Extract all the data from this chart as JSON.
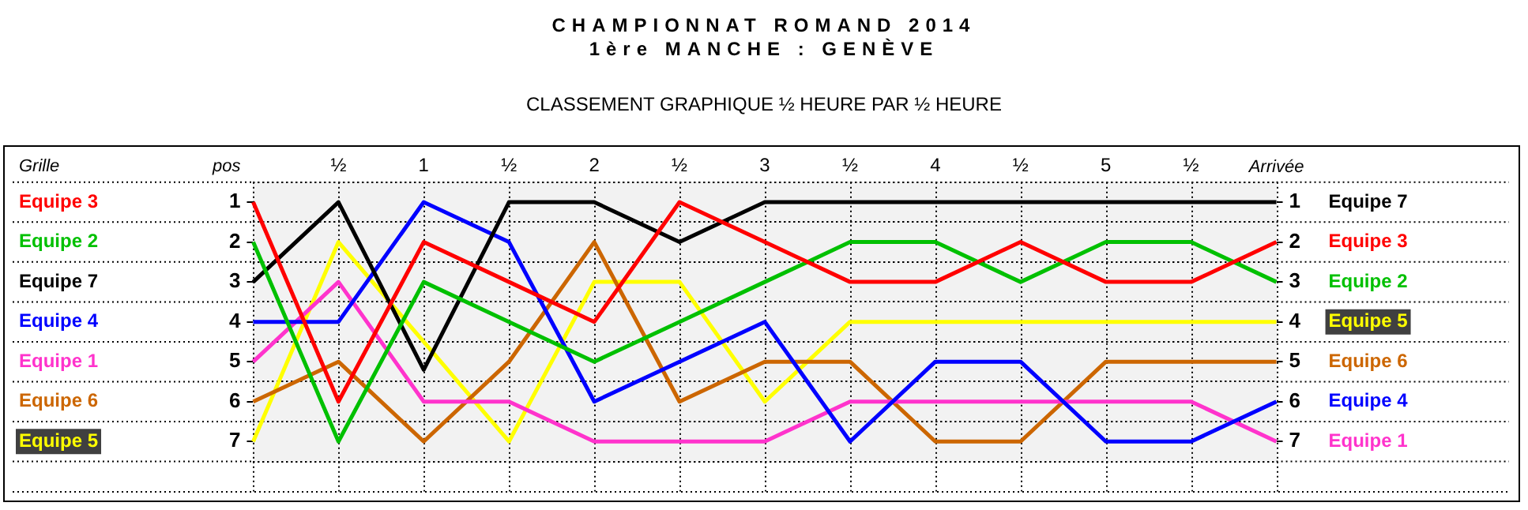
{
  "chart_data": {
    "type": "line",
    "title": "CHAMPIONNAT ROMAND 2014",
    "subtitle": "1ère MANCHE : GENÈVE",
    "annotations": [
      "CLASSEMENT GRAPHIQUE ½ HEURE PAR ½ HEURE",
      "Grille"
    ],
    "ylabel": "pos",
    "categories": [
      null,
      "½",
      "1",
      "½",
      "2",
      "½",
      "3",
      "½",
      "4",
      "½",
      "5",
      "½",
      "Arrivée"
    ],
    "series": [
      {
        "name": "Equipe 3",
        "color": "#ff0000",
        "values": [
          1,
          6,
          2,
          3,
          4,
          1,
          2,
          3,
          3,
          2,
          3,
          3,
          2
        ]
      },
      {
        "name": "Equipe 2",
        "color": "#00c000",
        "values": [
          2,
          7,
          3,
          4,
          5,
          4,
          3,
          2,
          2,
          3,
          2,
          2,
          3
        ]
      },
      {
        "name": "Equipe 7",
        "color": "#000000",
        "values": [
          3,
          1,
          5.2,
          1,
          1,
          2,
          1,
          1,
          1,
          1,
          1,
          1,
          1
        ]
      },
      {
        "name": "Equipe 4",
        "color": "#0000ff",
        "values": [
          4,
          4,
          1,
          2,
          6,
          5,
          4,
          7,
          5,
          5,
          7,
          7,
          6
        ]
      },
      {
        "name": "Equipe 1",
        "color": "#ff33cc",
        "values": [
          5,
          3,
          6,
          6,
          7,
          7,
          7,
          6,
          6,
          6,
          6,
          6,
          7
        ]
      },
      {
        "name": "Equipe 6",
        "color": "#cc6600",
        "values": [
          6,
          5,
          7,
          5,
          2,
          6,
          5,
          5,
          7,
          7,
          5,
          5,
          5
        ]
      },
      {
        "name": "Equipe 5",
        "color": "#ffff00",
        "values": [
          7,
          2,
          4.5,
          7,
          3,
          3,
          6,
          4,
          4,
          4,
          4,
          4,
          4
        ]
      }
    ],
    "ylim": [
      8.25,
      0.5
    ],
    "yticks": [
      {
        "value": 0.5,
        "label": null
      },
      1,
      {
        "value": 1.5,
        "label": null
      },
      2,
      {
        "value": 2.5,
        "label": null
      },
      3,
      {
        "value": 3.5,
        "label": null
      },
      4,
      {
        "value": 4.5,
        "label": null
      },
      5,
      {
        "value": 5.5,
        "label": null
      },
      6,
      {
        "value": 6.5,
        "label": null
      },
      7,
      {
        "value": 7.5,
        "label": null
      }
    ],
    "y2lim": [
      8.25,
      0.5
    ],
    "y2ticks": [
      {
        "value": 0.5,
        "label": null
      },
      1,
      {
        "value": 1.5,
        "label": null
      },
      2,
      {
        "value": 2.5,
        "label": null
      },
      3,
      {
        "value": 3.5,
        "label": null
      },
      4,
      {
        "value": 4.5,
        "label": null
      },
      5,
      {
        "value": 5.5,
        "label": null
      },
      6,
      {
        "value": 6.5,
        "label": null
      },
      7,
      {
        "value": 7.5,
        "label": null
      }
    ],
    "grid": true,
    "legend": false,
    "marker": "none",
    "line_style": "solid"
  }
}
